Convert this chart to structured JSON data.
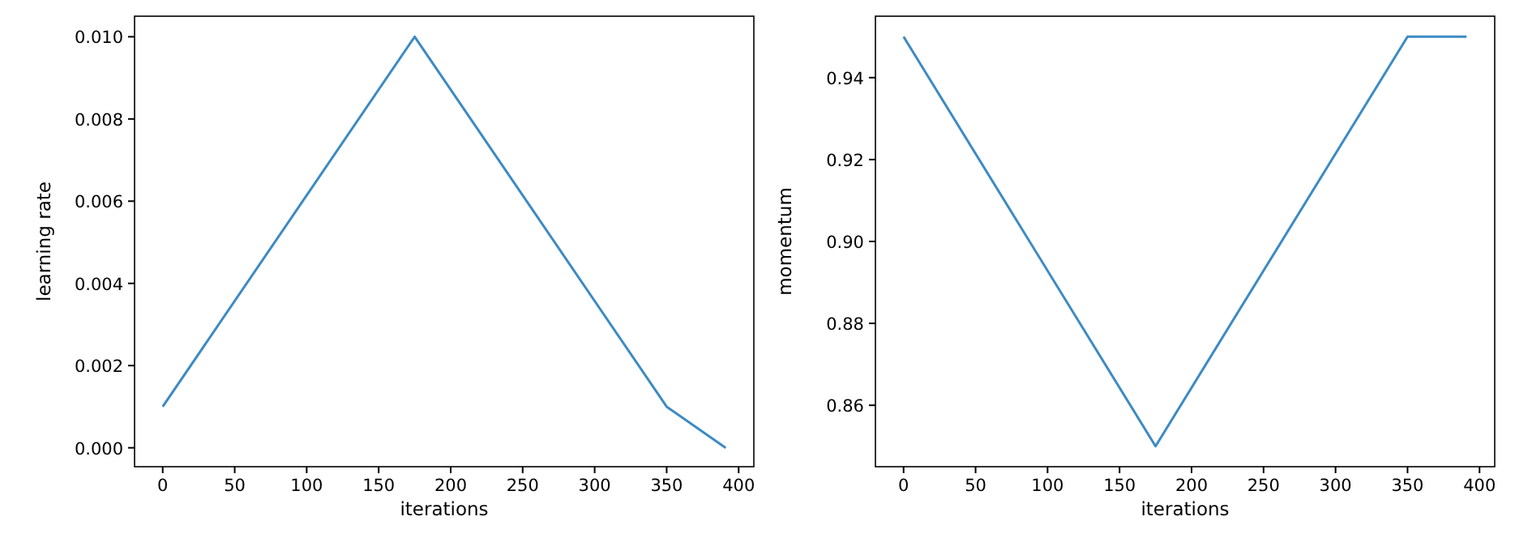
{
  "chart_data": [
    {
      "type": "line",
      "xlabel": "iterations",
      "ylabel": "learning rate",
      "x": [
        0,
        175,
        350,
        391
      ],
      "series": [
        {
          "color": "#3c8ac4",
          "values": [
            0.001,
            0.01,
            0.001,
            0
          ]
        }
      ],
      "xlim": [
        -19.55,
        410.55
      ],
      "xticks": [
        0,
        50,
        100,
        150,
        200,
        250,
        300,
        350,
        400
      ],
      "ylim": [
        -0.00046,
        0.0105
      ],
      "yticks": [
        {
          "value": 0,
          "label": "0.000"
        },
        {
          "value": 0.002,
          "label": "0.002"
        },
        {
          "value": 0.004,
          "label": "0.004"
        },
        {
          "value": 0.006,
          "label": "0.006"
        },
        {
          "value": 0.008,
          "label": "0.008"
        },
        {
          "value": 0.01,
          "label": "0.010"
        }
      ],
      "grid": false
    },
    {
      "type": "line",
      "xlabel": "iterations",
      "ylabel": "momentum",
      "x": [
        0,
        175,
        350,
        391
      ],
      "series": [
        {
          "color": "#3c8ac4",
          "values": [
            0.95,
            0.85,
            0.95,
            0.95
          ]
        }
      ],
      "xlim": [
        -19.55,
        410.55
      ],
      "xticks": [
        0,
        50,
        100,
        150,
        200,
        250,
        300,
        350,
        400
      ],
      "ylim": [
        0.845,
        0.955
      ],
      "yticks": [
        {
          "value": 0.86,
          "label": "0.86"
        },
        {
          "value": 0.88,
          "label": "0.88"
        },
        {
          "value": 0.9,
          "label": "0.90"
        },
        {
          "value": 0.92,
          "label": "0.92"
        },
        {
          "value": 0.94,
          "label": "0.94"
        }
      ],
      "grid": false
    }
  ]
}
